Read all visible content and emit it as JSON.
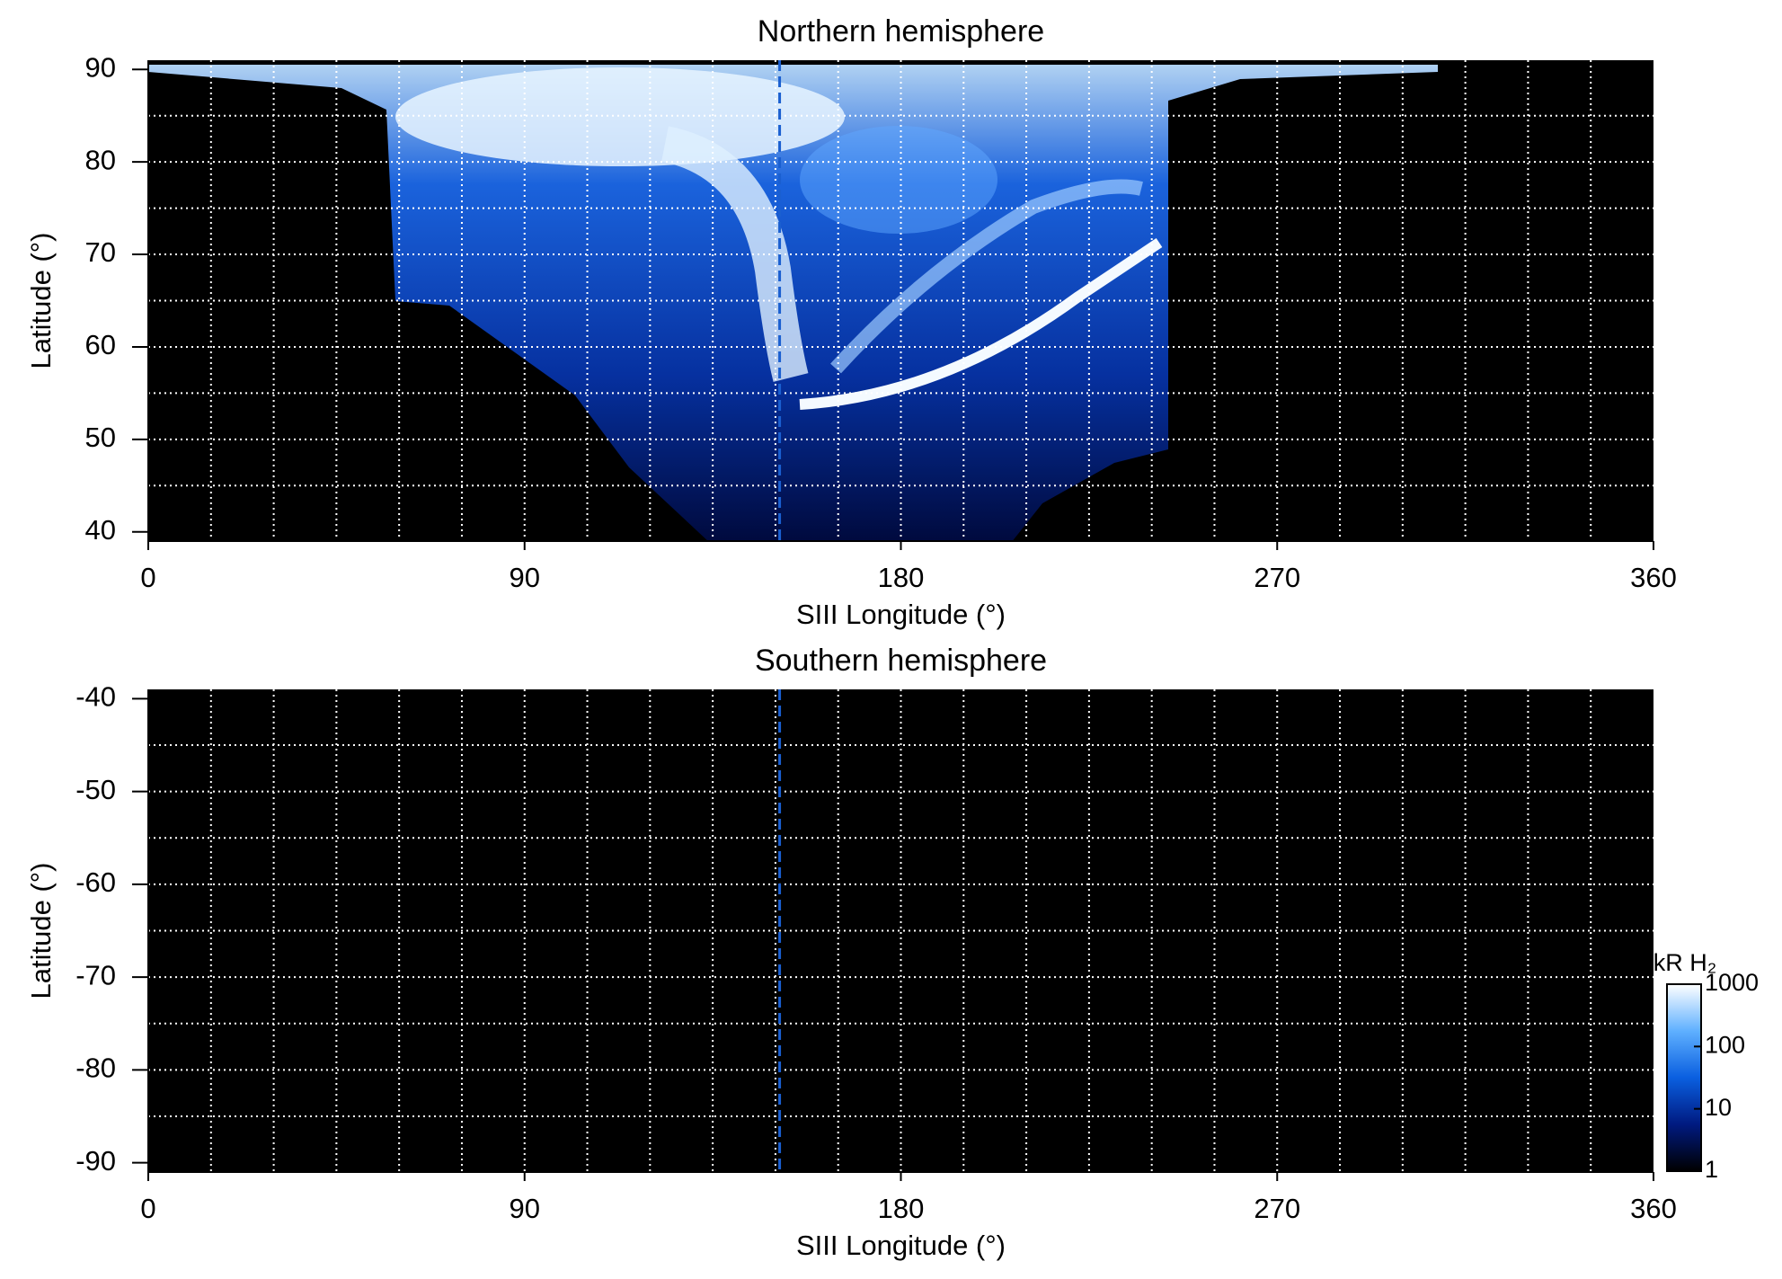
{
  "chart_data": [
    {
      "type": "heatmap",
      "title": "Northern hemisphere",
      "x_label": "SIII Longitude (°)",
      "y_label": "Latitude (°)",
      "xlim": [
        0,
        360
      ],
      "xticks": [
        0,
        90,
        180,
        270,
        360
      ],
      "ylim": [
        39,
        91
      ],
      "yticks": [
        40,
        50,
        60,
        70,
        80,
        90
      ],
      "xgrid": [
        15,
        30,
        45,
        60,
        75,
        90,
        105,
        120,
        135,
        150,
        165,
        180,
        195,
        210,
        225,
        240,
        255,
        270,
        285,
        300,
        315,
        330,
        345
      ],
      "ygrid": [
        45,
        50,
        55,
        60,
        65,
        70,
        75,
        80,
        85
      ],
      "reference_line": {
        "x": 151,
        "color": "#1a5fd0"
      }
    },
    {
      "type": "heatmap",
      "title": "Southern hemisphere",
      "x_label": "SIII Longitude (°)",
      "y_label": "Latitude (°)",
      "xlim": [
        0,
        360
      ],
      "xticks": [
        0,
        90,
        180,
        270,
        360
      ],
      "ylim": [
        -91,
        -39
      ],
      "yticks": [
        -90,
        -80,
        -70,
        -60,
        -50,
        -40
      ],
      "xgrid": [
        15,
        30,
        45,
        60,
        75,
        90,
        105,
        120,
        135,
        150,
        165,
        180,
        195,
        210,
        225,
        240,
        255,
        270,
        285,
        300,
        315,
        330,
        345
      ],
      "ygrid": [
        -85,
        -80,
        -75,
        -70,
        -65,
        -60,
        -55,
        -50,
        -45
      ],
      "reference_line": {
        "x": 151,
        "color": "#1a5fd0"
      },
      "colorbar": {
        "label": "kR H₂",
        "log": true,
        "lim": [
          1,
          1000
        ],
        "ticks": [
          1,
          10,
          100,
          1000
        ],
        "colors": [
          "#000000",
          "#001a80",
          "#0a5fe0",
          "#5fb0ff",
          "#ffffff"
        ]
      }
    }
  ]
}
